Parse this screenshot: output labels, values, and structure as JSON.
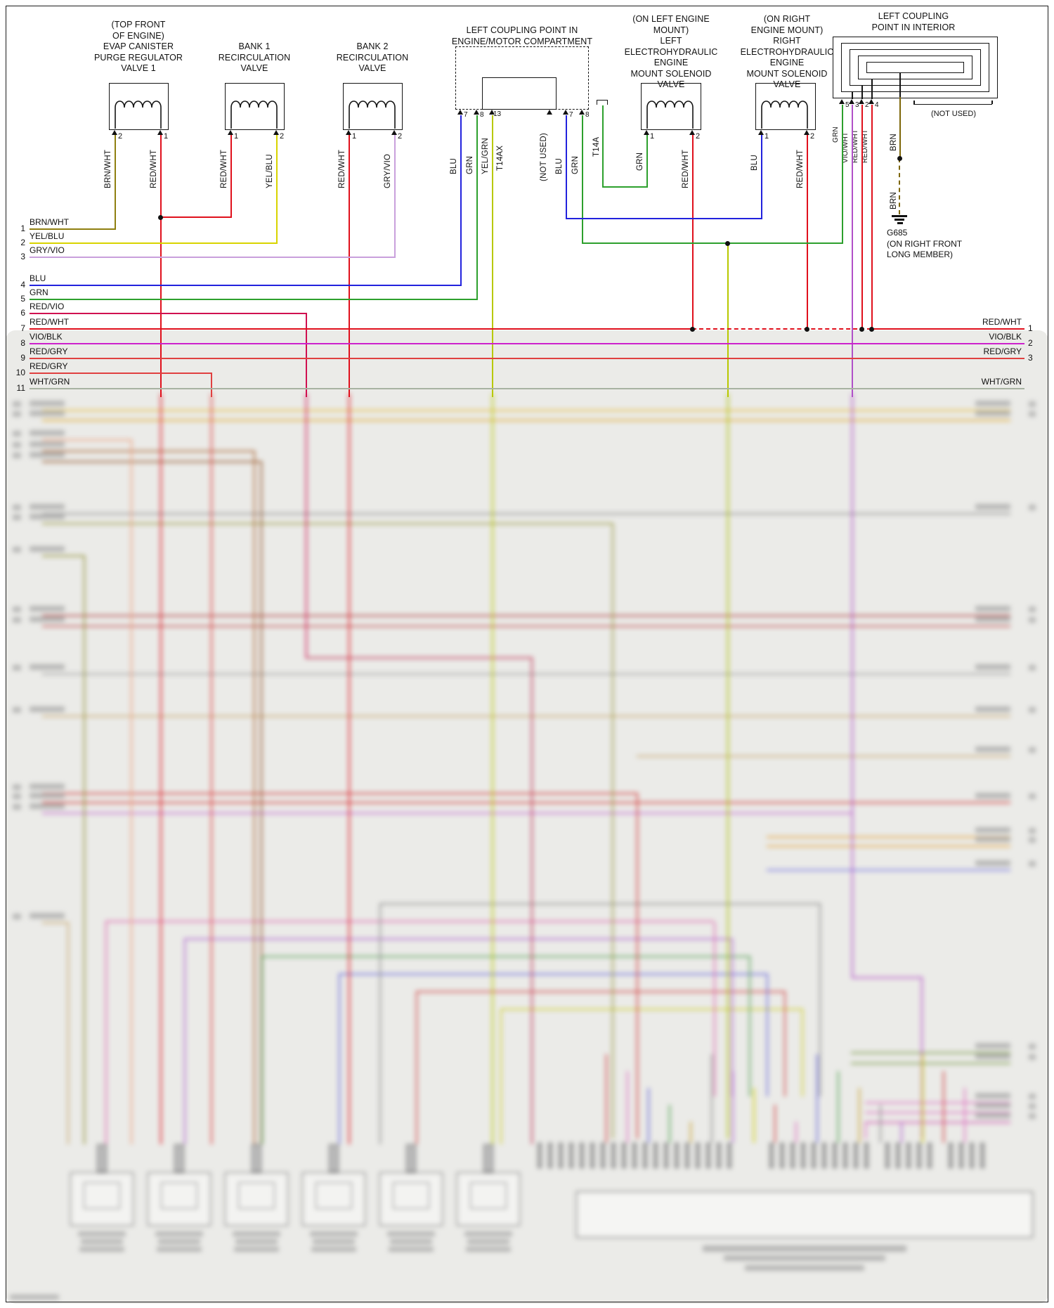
{
  "palette": {
    "brn_wht": "#8f7f10",
    "red_wht": "#e0101c",
    "yel_blu": "#d8d400",
    "gry_vio": "#c9a0dc",
    "blu": "#2222dd",
    "grn": "#2da02d",
    "red_vio": "#d01050",
    "vio_blk": "#cc22cc",
    "red_gry": "#e04040",
    "wht_grn": "#a8b2a2",
    "yel_grn": "#b8c800",
    "vio_wht": "#b050c8",
    "brn": "#7d6608",
    "black": "#141414"
  },
  "components": {
    "evap_valve": {
      "caption": [
        "(TOP FRONT",
        "OF ENGINE)",
        "EVAP CANISTER",
        "PURGE REGULATOR",
        "VALVE 1"
      ],
      "pins": [
        {
          "num": "2",
          "wire": "BRN/WHT"
        },
        {
          "num": "1",
          "wire": "RED/WHT"
        }
      ]
    },
    "bank1_valve": {
      "caption": [
        "BANK 1",
        "RECIRCULATION",
        "VALVE"
      ],
      "pins": [
        {
          "num": "1",
          "wire": "RED/WHT"
        },
        {
          "num": "2",
          "wire": "YEL/BLU"
        }
      ]
    },
    "bank2_valve": {
      "caption": [
        "BANK 2",
        "RECIRCULATION",
        "VALVE"
      ],
      "pins": [
        {
          "num": "1",
          "wire": "RED/WHT"
        },
        {
          "num": "2",
          "wire": "GRY/VIO"
        }
      ]
    },
    "coupling_engine": {
      "caption": [
        "LEFT COUPLING POINT IN",
        "ENGINE/MOTOR COMPARTMENT"
      ],
      "connector_a": "T14AX",
      "connector_b": "T14A",
      "not_used": "(NOT USED)",
      "pins": [
        {
          "num": "7",
          "wire": "BLU"
        },
        {
          "num": "8",
          "wire": "GRN"
        },
        {
          "num": "13",
          "wire": "YEL/GRN"
        },
        {
          "num": "7",
          "wire": "BLU"
        },
        {
          "num": "8",
          "wire": "GRN"
        }
      ]
    },
    "left_mount_valve": {
      "caption": [
        "(ON LEFT ENGINE",
        "MOUNT)",
        "LEFT ELECTROHYDRAULIC",
        "ENGINE",
        "MOUNT SOLENOID",
        "VALVE"
      ],
      "pins": [
        {
          "num": "1",
          "wire": "GRN"
        },
        {
          "num": "2",
          "wire": "RED/WHT"
        }
      ]
    },
    "right_mount_valve": {
      "caption": [
        "(ON RIGHT",
        "ENGINE MOUNT)",
        "RIGHT ELECTROHYDRAULIC",
        "ENGINE",
        "MOUNT SOLENOID",
        "VALVE"
      ],
      "pins": [
        {
          "num": "1",
          "wire": "BLU"
        },
        {
          "num": "2",
          "wire": "RED/WHT"
        }
      ]
    },
    "coupling_interior": {
      "caption": [
        "LEFT COUPLING",
        "POINT IN INTERIOR"
      ],
      "not_used": "(NOT USED)",
      "pins": [
        {
          "num": "5",
          "wire": "GRN"
        },
        {
          "num": "3",
          "wire": "VIO/WHT"
        },
        {
          "num": "2",
          "wire": "RED/WHT"
        },
        {
          "num": "4",
          "wire": "RED/WHT"
        }
      ],
      "brn_label": "BRN",
      "ground": {
        "id": "G685",
        "location": [
          "(ON RIGHT FRONT",
          "LONG MEMBER)"
        ]
      }
    }
  },
  "left_rail": [
    {
      "num": "1",
      "label": "BRN/WHT"
    },
    {
      "num": "2",
      "label": "YEL/BLU"
    },
    {
      "num": "3",
      "label": "GRY/VIO"
    },
    {
      "num": "4",
      "label": "BLU"
    },
    {
      "num": "5",
      "label": "GRN"
    },
    {
      "num": "6",
      "label": "RED/VIO"
    },
    {
      "num": "7",
      "label": "RED/WHT"
    },
    {
      "num": "8",
      "label": "VIO/BLK"
    },
    {
      "num": "9",
      "label": "RED/GRY"
    },
    {
      "num": "10",
      "label": "RED/GRY"
    },
    {
      "num": "11",
      "label": "WHT/GRN"
    }
  ],
  "right_rail": [
    {
      "num": "1",
      "label": "RED/WHT"
    },
    {
      "num": "2",
      "label": "VIO/BLK"
    },
    {
      "num": "3",
      "label": "RED/GRY"
    },
    {
      "num": "",
      "label": "WHT/GRN"
    }
  ]
}
